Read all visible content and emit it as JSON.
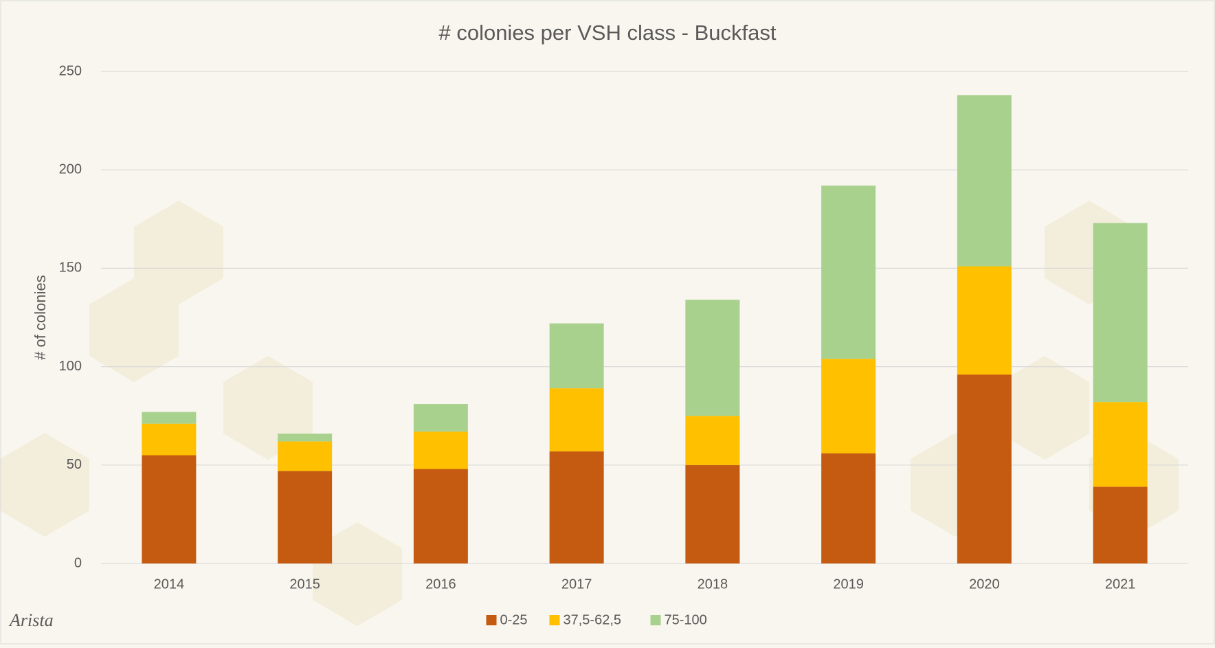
{
  "chart_data": {
    "type": "stacked_bar",
    "title": "# colonies per VSH class - Buckfast",
    "y_label": "# of colonies",
    "logo": "Arista",
    "categories": [
      "2014",
      "2015",
      "2016",
      "2017",
      "2018",
      "2019",
      "2020",
      "2021"
    ],
    "series": [
      {
        "name": "0-25",
        "color": "#c55a11",
        "values": [
          55,
          47,
          48,
          57,
          50,
          56,
          96,
          39
        ]
      },
      {
        "name": "37,5-62,5",
        "color": "#ffc000",
        "values": [
          16,
          15,
          19,
          32,
          25,
          48,
          55,
          43
        ]
      },
      {
        "name": "75-100",
        "color": "#a9d18e",
        "values": [
          6,
          4,
          14,
          33,
          59,
          88,
          87,
          91
        ]
      }
    ],
    "ylim": [
      0,
      250
    ],
    "yticks": [
      0,
      50,
      100,
      150,
      200,
      250
    ],
    "grid": true,
    "legend": "bottom"
  }
}
